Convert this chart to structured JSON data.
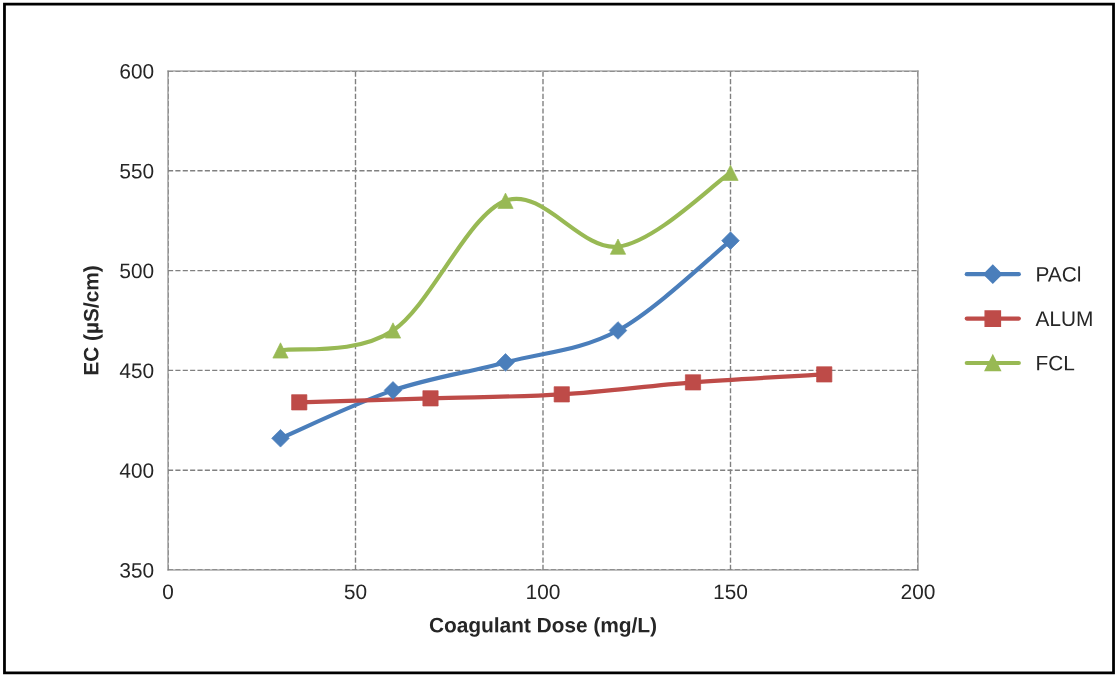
{
  "chart_data": {
    "type": "line",
    "xlabel": "Coagulant Dose (mg/L)",
    "ylabel": "EC (µS/cm)",
    "xlim": [
      0,
      200
    ],
    "xticks": [
      0,
      50,
      100,
      150,
      200
    ],
    "ylim": [
      350,
      600
    ],
    "yticks": [
      350,
      400,
      450,
      500,
      550,
      600
    ],
    "grid": true,
    "legend": "right",
    "line_style": "solid",
    "series": [
      {
        "name": "PACl",
        "color": "#4a7ebb",
        "marker": "diamond",
        "x": [
          30,
          60,
          90,
          120,
          150
        ],
        "values": [
          416,
          440,
          454,
          470,
          515
        ]
      },
      {
        "name": "ALUM",
        "color": "#be4b48",
        "marker": "square",
        "x": [
          35,
          70,
          105,
          140,
          175
        ],
        "values": [
          434,
          436,
          438,
          444,
          448
        ]
      },
      {
        "name": "FCL",
        "color": "#98b954",
        "marker": "triangle",
        "x": [
          30,
          60,
          90,
          120,
          150
        ],
        "values": [
          460,
          470,
          535,
          512,
          549
        ]
      }
    ]
  }
}
